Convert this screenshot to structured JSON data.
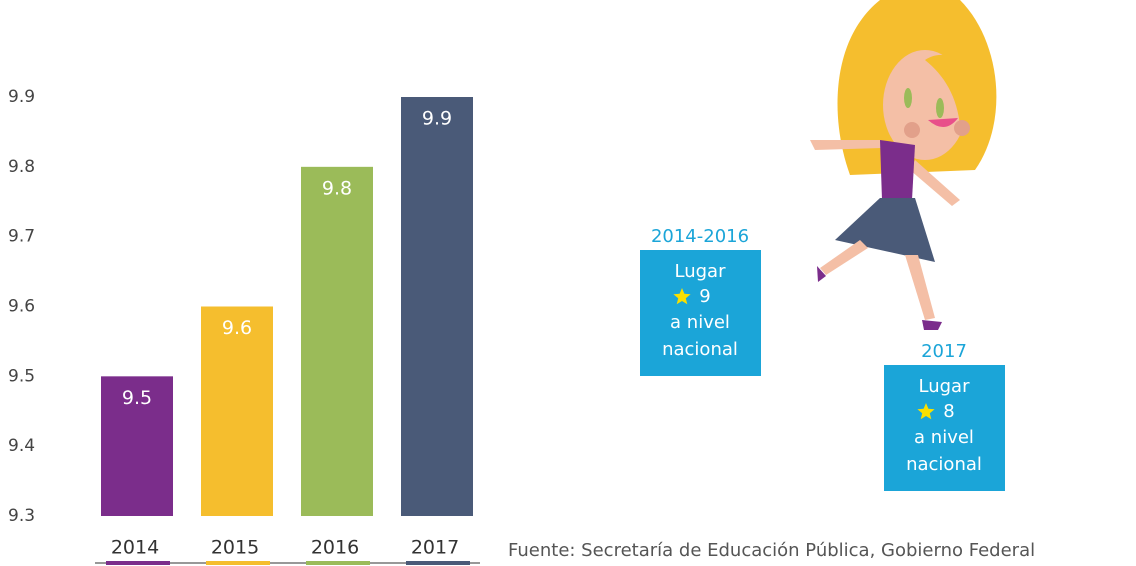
{
  "chart_data": {
    "type": "bar",
    "categories": [
      "2014",
      "2015",
      "2016",
      "2017"
    ],
    "values": [
      9.5,
      9.6,
      9.8,
      9.9
    ],
    "colors": [
      "#7b2d8b",
      "#f5be2e",
      "#9bbb59",
      "#4a5a78"
    ],
    "ylim": [
      9.3,
      9.9
    ],
    "yticks": [
      9.3,
      9.4,
      9.5,
      9.6,
      9.7,
      9.8,
      9.9
    ],
    "grid": false
  },
  "rankings": [
    {
      "period": "2014-2016",
      "label": "Lugar",
      "place": 9,
      "scope": [
        "a nivel",
        "nacional"
      ]
    },
    {
      "period": "2017",
      "label": "Lugar",
      "place": 8,
      "scope": [
        "a nivel",
        "nacional"
      ]
    }
  ],
  "source": "Fuente: Secretaría de Educación Pública, Gobierno Federal"
}
